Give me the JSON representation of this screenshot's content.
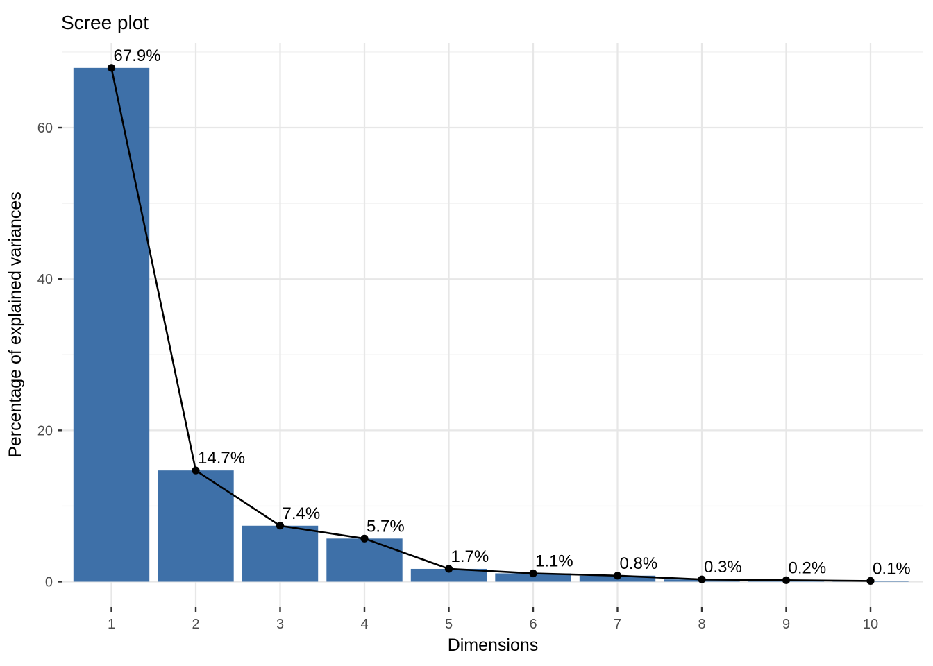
{
  "chart_data": {
    "type": "bar",
    "overlay": "line",
    "title": "Scree plot",
    "xlabel": "Dimensions",
    "ylabel": "Percentage of explained variances",
    "categories": [
      1,
      2,
      3,
      4,
      5,
      6,
      7,
      8,
      9,
      10
    ],
    "values": [
      67.9,
      14.7,
      7.4,
      5.7,
      1.7,
      1.1,
      0.8,
      0.3,
      0.2,
      0.1
    ],
    "point_labels": [
      "67.9%",
      "14.7%",
      "7.4%",
      "5.7%",
      "1.7%",
      "1.1%",
      "0.8%",
      "0.3%",
      "0.2%",
      "0.1%"
    ],
    "x_tick_labels": [
      "1",
      "2",
      "3",
      "4",
      "5",
      "6",
      "7",
      "8",
      "9",
      "10"
    ],
    "y_major_ticks": [
      0,
      20,
      40,
      60
    ],
    "y_major_tick_labels": [
      "0",
      "20",
      "40",
      "60"
    ],
    "y_minor_ticks": [
      10,
      30,
      50,
      70
    ],
    "ylim": [
      -3.3,
      71.2
    ],
    "grid": "on",
    "legend": "none",
    "colors": {
      "bar_fill": "#3E70A8",
      "line": "#000000",
      "point": "#000000",
      "grid_major": "#E7E7E7",
      "grid_minor": "#F1F1F1",
      "tick_mark": "#333333",
      "tick_label": "#4d4d4d",
      "text": "#000000",
      "background": "#ffffff"
    }
  }
}
